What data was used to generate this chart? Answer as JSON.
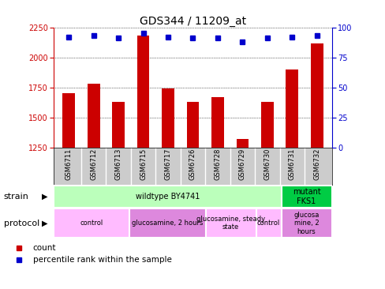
{
  "title": "GDS344 / 11209_at",
  "samples": [
    "GSM6711",
    "GSM6712",
    "GSM6713",
    "GSM6715",
    "GSM6717",
    "GSM6726",
    "GSM6728",
    "GSM6729",
    "GSM6730",
    "GSM6731",
    "GSM6732"
  ],
  "counts": [
    1700,
    1780,
    1630,
    2180,
    1740,
    1630,
    1670,
    1320,
    1630,
    1900,
    2120
  ],
  "percentiles": [
    92,
    93,
    91,
    95,
    92,
    91,
    91,
    88,
    91,
    92,
    93
  ],
  "ylim_left": [
    1250,
    2250
  ],
  "ylim_right": [
    0,
    100
  ],
  "yticks_left": [
    1250,
    1500,
    1750,
    2000,
    2250
  ],
  "yticks_right": [
    0,
    25,
    50,
    75,
    100
  ],
  "bar_color": "#cc0000",
  "dot_color": "#0000cc",
  "strain_rows": [
    {
      "label": "wildtype BY4741",
      "start": 0,
      "end": 9,
      "color": "#bbffbb"
    },
    {
      "label": "mutant\nFKS1",
      "start": 9,
      "end": 11,
      "color": "#00cc44"
    }
  ],
  "protocol_rows": [
    {
      "label": "control",
      "start": 0,
      "end": 3,
      "color": "#ffbbff"
    },
    {
      "label": "glucosamine, 2 hours",
      "start": 3,
      "end": 6,
      "color": "#dd88dd"
    },
    {
      "label": "glucosamine, steady\nstate",
      "start": 6,
      "end": 8,
      "color": "#ffbbff"
    },
    {
      "label": "control",
      "start": 8,
      "end": 9,
      "color": "#ffbbff"
    },
    {
      "label": "glucosa\nmine, 2\nhours",
      "start": 9,
      "end": 11,
      "color": "#dd88dd"
    }
  ],
  "left_tick_color": "#cc0000",
  "right_tick_color": "#0000cc",
  "title_fontsize": 10,
  "tick_fontsize": 7,
  "sample_fontsize": 6,
  "band_fontsize": 7,
  "legend_fontsize": 7.5,
  "xlabels_bg": "#cccccc",
  "fig_width": 4.89,
  "fig_height": 3.66,
  "fig_dpi": 100
}
